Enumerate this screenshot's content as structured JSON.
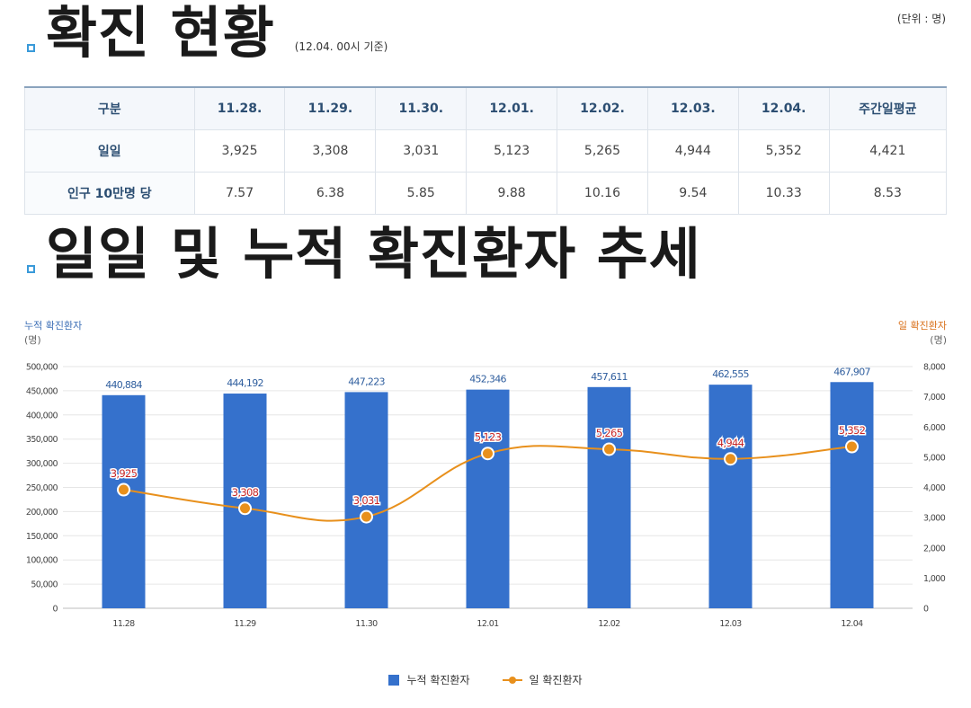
{
  "unit_label": "(단위 : 명)",
  "section1": {
    "title": "확진 현황",
    "basis": "(12.04. 00시 기준)"
  },
  "table": {
    "header": [
      "구분",
      "11.28.",
      "11.29.",
      "11.30.",
      "12.01.",
      "12.02.",
      "12.03.",
      "12.04.",
      "주간일평균"
    ],
    "rows": [
      {
        "label": "일일",
        "values": [
          "3,925",
          "3,308",
          "3,031",
          "5,123",
          "5,265",
          "4,944",
          "5,352",
          "4,421"
        ]
      },
      {
        "label": "인구 10만명 당",
        "values": [
          "7.57",
          "6.38",
          "5.85",
          "9.88",
          "10.16",
          "9.54",
          "10.33",
          "8.53"
        ]
      }
    ]
  },
  "section2": {
    "title": "일일 및 누적 확진환자 추세"
  },
  "chart_data": {
    "type": "bar",
    "categories": [
      "11.28",
      "11.29",
      "11.30",
      "12.01",
      "12.02",
      "12.03",
      "12.04"
    ],
    "left_axis": {
      "title": "누적 확진환자",
      "unit": "(명)",
      "ylim": [
        0,
        500000
      ],
      "ticks": [
        "0",
        "50,000",
        "100,000",
        "150,000",
        "200,000",
        "250,000",
        "300,000",
        "350,000",
        "400,000",
        "450,000",
        "500,000"
      ]
    },
    "right_axis": {
      "title": "일 확진환자",
      "unit": "(명)",
      "ylim": [
        0,
        8000
      ],
      "ticks": [
        "0",
        "1,000",
        "2,000",
        "3,000",
        "4,000",
        "5,000",
        "6,000",
        "7,000",
        "8,000"
      ]
    },
    "series": [
      {
        "name": "누적 확진환자",
        "type": "bar",
        "axis": "left",
        "color": "#3571cc",
        "values": [
          440884,
          444192,
          447223,
          452346,
          457611,
          462555,
          467907
        ],
        "labels": [
          "440,884",
          "444,192",
          "447,223",
          "452,346",
          "457,611",
          "462,555",
          "467,907"
        ]
      },
      {
        "name": "일 확진환자",
        "type": "line",
        "axis": "right",
        "color": "#e8901c",
        "values": [
          3925,
          3308,
          3031,
          5123,
          5265,
          4944,
          5352
        ],
        "labels": [
          "3,925",
          "3,308",
          "3,031",
          "5,123",
          "5,265",
          "4,944",
          "5,352"
        ]
      }
    ],
    "grid": true,
    "legend": "bottom-center"
  }
}
